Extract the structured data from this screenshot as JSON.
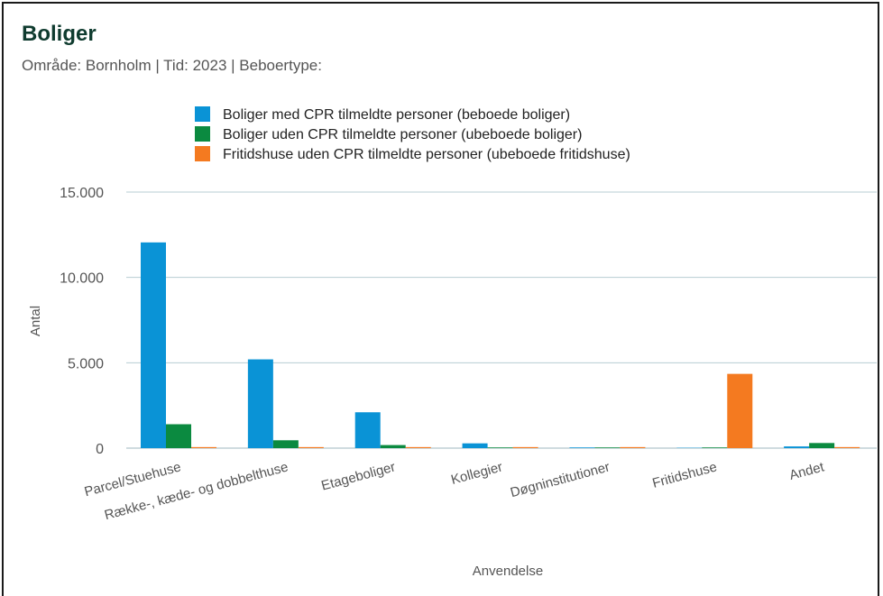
{
  "header": {
    "title": "Boliger",
    "subtitle": "Område: Bornholm | Tid: 2023 | Beboertype:"
  },
  "chart_data": {
    "type": "bar",
    "title": "Boliger",
    "subtitle": "Område: Bornholm | Tid: 2023 | Beboertype:",
    "xlabel": "Anvendelse",
    "ylabel": "Antal",
    "ylim": [
      0,
      15000
    ],
    "y_ticks": [
      0,
      5000,
      10000,
      15000
    ],
    "y_tick_labels": [
      "0",
      "5.000",
      "10.000",
      "15.000"
    ],
    "grid": true,
    "legend_position": "top",
    "categories": [
      "Parcel/Stuehuse",
      "Række-, kæde- og dobbelthuse",
      "Etageboliger",
      "Kollegier",
      "Døgninstitutioner",
      "Fritidshuse",
      "Andet"
    ],
    "series": [
      {
        "name": "Boliger med CPR tilmeldte personer (beboede boliger)",
        "color": "#0a93d6",
        "values": [
          12050,
          5200,
          2100,
          280,
          40,
          20,
          100
        ]
      },
      {
        "name": "Boliger uden CPR tilmeldte personer (ubeboede boliger)",
        "color": "#0b8a40",
        "values": [
          1400,
          460,
          180,
          40,
          40,
          40,
          300
        ]
      },
      {
        "name": "Fritidshuse uden CPR tilmeldte personer (ubeboede fritidshuse)",
        "color": "#f47a20",
        "values": [
          60,
          60,
          60,
          60,
          60,
          4350,
          60
        ]
      }
    ]
  }
}
